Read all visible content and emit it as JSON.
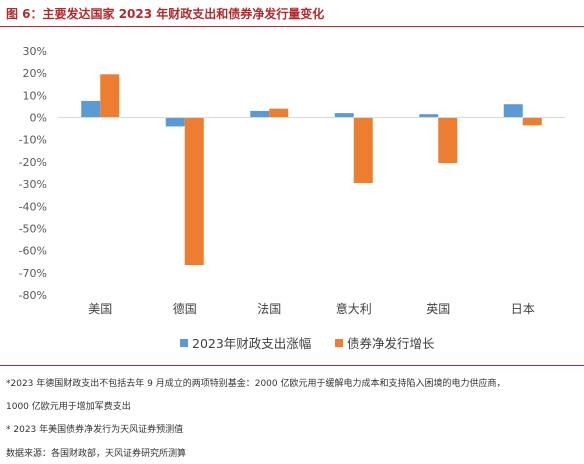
{
  "title": "图 6：主要发达国家 2023 年财政支出和债券净发行量变化",
  "chart_data": {
    "type": "bar",
    "categories": [
      "美国",
      "德国",
      "法国",
      "意大利",
      "英国",
      "日本"
    ],
    "series": [
      {
        "name": "2023年财政支出涨幅",
        "color": "#5b9bd5",
        "values": [
          7.5,
          -4,
          3,
          2,
          1.5,
          6
        ]
      },
      {
        "name": "债券净发行增长",
        "color": "#ed7d31",
        "values": [
          19.5,
          -66.5,
          4,
          -29.5,
          -20.5,
          -3.5
        ]
      }
    ],
    "ylim": [
      -80,
      30
    ],
    "yticks": [
      30,
      20,
      10,
      0,
      -10,
      -20,
      -30,
      -40,
      -50,
      -60,
      -70,
      -80
    ],
    "ytick_labels": [
      "30%",
      "20%",
      "10%",
      "0%",
      "-10%",
      "-20%",
      "-30%",
      "-40%",
      "-50%",
      "-60%",
      "-70%",
      "-80%"
    ],
    "grid": false,
    "legend_position": "bottom"
  },
  "notes": [
    "*2023 年德国财政支出不包括去年 9 月成立的两项特别基金：2000 亿欧元用于缓解电力成本和支持陷入困境的电力供应商，",
    "1000 亿欧元用于增加军费支出",
    "* 2023 年美国债券净发行为天风证券预测值",
    "数据来源：各国财政部，天风证券研究所测算"
  ]
}
